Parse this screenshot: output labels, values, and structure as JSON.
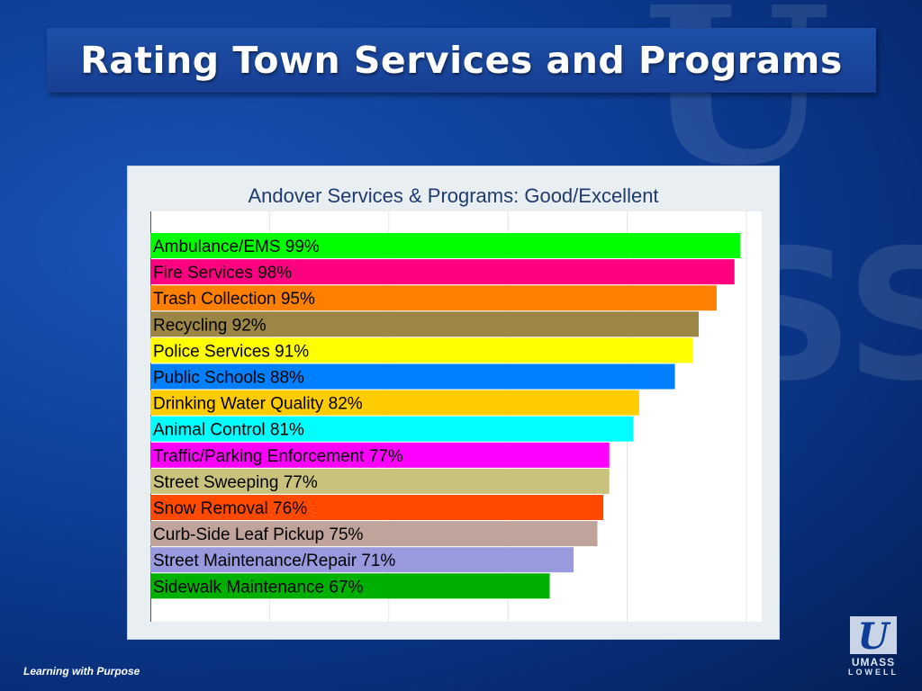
{
  "slide": {
    "title": "Rating Town Services and Programs",
    "footer": "Learning with Purpose",
    "logo_line1": "UMASS",
    "logo_line2": "LOWELL"
  },
  "colors": {
    "background": "#0d3d96",
    "title_box": "#1b47a0",
    "chart_panel": "#e9eef2"
  },
  "chart_data": {
    "type": "bar",
    "orientation": "horizontal",
    "title": "Andover Services & Programs: Good/Excellent",
    "xlim": [
      0,
      100
    ],
    "grid": true,
    "categories": [
      "Ambulance/EMS 99%",
      "Fire Services 98%",
      "Trash Collection 95%",
      "Recycling 92%",
      "Police Services 91%",
      "Public Schools 88%",
      "Drinking Water Quality 82%",
      "Animal Control 81%",
      "Traffic/Parking Enforcement 77%",
      "Street Sweeping 77%",
      "Snow Removal 76%",
      "Curb-Side Leaf Pickup 75%",
      "Street Maintenance/Repair 71%",
      "Sidewalk Maintenance 67%"
    ],
    "values": [
      99,
      98,
      95,
      92,
      91,
      88,
      82,
      81,
      77,
      77,
      76,
      75,
      71,
      67
    ],
    "bar_colors": [
      "#00ff00",
      "#ff0080",
      "#ff8000",
      "#9b8645",
      "#ffff00",
      "#0080ff",
      "#ffcc00",
      "#00ffff",
      "#ff00ff",
      "#c9c27d",
      "#ff4a00",
      "#c0a39a",
      "#9999dd",
      "#00b000"
    ]
  }
}
